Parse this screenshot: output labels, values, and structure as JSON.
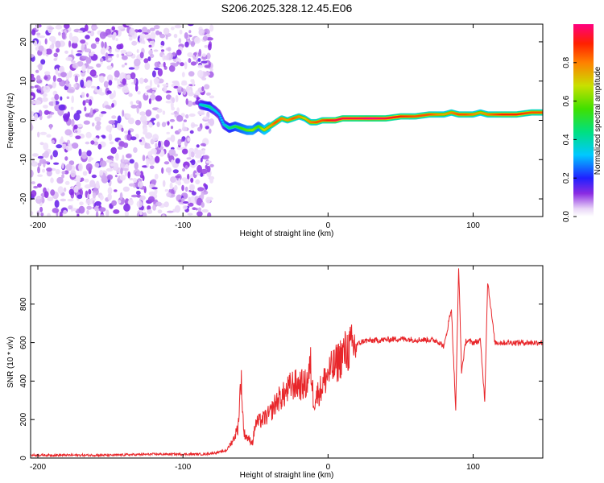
{
  "figure": {
    "title": "S206.2025.328.12.45.E06"
  },
  "chart_data": [
    {
      "type": "heatmap",
      "title": "S206.2025.328.12.45.E06",
      "xlabel": "Height of straight line (km)",
      "ylabel": "Frequency (Hz)",
      "xlim": [
        -205,
        148
      ],
      "ylim": [
        -24.5,
        24.5
      ],
      "xticks": [
        -200,
        -100,
        0,
        100
      ],
      "yticks": [
        -20,
        -10,
        0,
        10,
        20
      ],
      "colorbar": {
        "label": "Normalized spectral amplitude",
        "range": [
          0,
          1
        ],
        "ticks": [
          0.0,
          0.2,
          0.4,
          0.6,
          0.8
        ]
      },
      "ridge_x": [
        -88,
        -82,
        -78,
        -75,
        -72,
        -68,
        -64,
        -60,
        -56,
        -52,
        -48,
        -44,
        -40,
        -36,
        -32,
        -28,
        -24,
        -20,
        -16,
        -12,
        -8,
        -4,
        0,
        5,
        10,
        20,
        30,
        40,
        50,
        60,
        70,
        80,
        85,
        90,
        95,
        100,
        105,
        110,
        120,
        130,
        140,
        148
      ],
      "ridge_freq": [
        4,
        3.5,
        2.5,
        1.5,
        -1,
        -2,
        -1.5,
        -2,
        -2.5,
        -2.5,
        -1.5,
        -2.5,
        -1.5,
        -0.5,
        0.5,
        0,
        0.5,
        1,
        0.5,
        -0.5,
        -0.5,
        0,
        0,
        0,
        0.5,
        0.5,
        0.5,
        0.5,
        1,
        1,
        1.5,
        1.5,
        2,
        1.5,
        1.5,
        1.5,
        2,
        1.5,
        1.5,
        1.5,
        2,
        2
      ],
      "ridge_amp": [
        0.35,
        0.45,
        0.35,
        0.3,
        0.35,
        0.45,
        0.5,
        0.55,
        0.6,
        0.65,
        0.55,
        0.7,
        0.75,
        0.85,
        0.8,
        0.75,
        0.85,
        0.8,
        0.7,
        0.8,
        0.85,
        0.85,
        0.9,
        0.95,
        0.95,
        0.95,
        1.0,
        0.95,
        0.9,
        0.85,
        0.85,
        0.75,
        0.8,
        0.85,
        0.85,
        0.8,
        0.75,
        0.8,
        0.9,
        0.9,
        0.85,
        0.85
      ]
    },
    {
      "type": "line",
      "xlabel": "Height of straight line (km)",
      "ylabel": "SNR (10 * v/v)",
      "xlim": [
        -205,
        148
      ],
      "ylim": [
        0,
        1000
      ],
      "xticks": [
        -200,
        -100,
        0,
        100
      ],
      "yticks": [
        0,
        200,
        400,
        600,
        800
      ],
      "series": [
        {
          "name": "SNR",
          "color": "#e8262a",
          "x": [
            -205,
            -180,
            -150,
            -120,
            -100,
            -85,
            -75,
            -70,
            -65,
            -62,
            -60,
            -58,
            -55,
            -52,
            -50,
            -45,
            -40,
            -35,
            -30,
            -25,
            -20,
            -15,
            -12,
            -10,
            -5,
            0,
            5,
            10,
            15,
            20,
            25,
            30,
            40,
            50,
            60,
            70,
            75,
            80,
            85,
            88,
            90,
            92,
            95,
            100,
            105,
            108,
            110,
            115,
            120,
            130,
            140,
            148
          ],
          "values": [
            15,
            15,
            15,
            20,
            20,
            20,
            30,
            40,
            100,
            160,
            420,
            130,
            100,
            80,
            180,
            200,
            230,
            300,
            330,
            380,
            380,
            380,
            480,
            300,
            360,
            440,
            480,
            540,
            570,
            590,
            610,
            610,
            615,
            620,
            615,
            615,
            610,
            580,
            780,
            250,
            1000,
            450,
            610,
            600,
            610,
            300,
            920,
            600,
            600,
            600,
            600,
            600
          ]
        }
      ]
    }
  ]
}
